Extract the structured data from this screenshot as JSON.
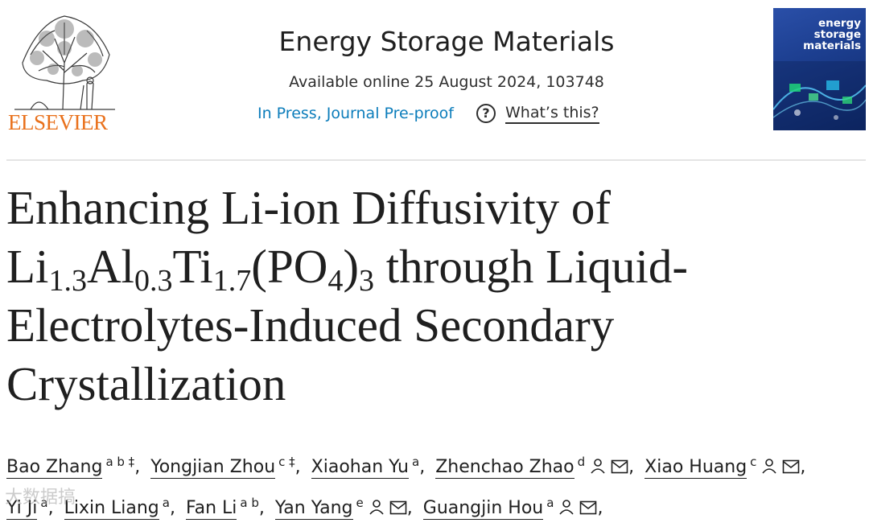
{
  "header": {
    "publisher_name": "ELSEVIER",
    "journal_title": "Energy Storage Materials",
    "available_online": "Available online 25 August 2024, 103748",
    "status_link": "In Press, Journal Pre-proof",
    "whats_this": "What’s this?",
    "cover_title_lines": [
      "energy",
      "storage",
      "materials"
    ]
  },
  "article": {
    "title_parts": {
      "line1": "Enhancing Li-ion Diffusivity of",
      "formula": [
        {
          "t": "Li",
          "sub": "1.3"
        },
        {
          "t": "Al",
          "sub": "0.3"
        },
        {
          "t": "Ti",
          "sub": "1.7"
        },
        {
          "t": "(PO",
          "sub": "4"
        },
        {
          "t": ")",
          "sub": "3"
        }
      ],
      "line2_rest": " through Liquid-",
      "line3": "Electrolytes-Induced Secondary",
      "line4": "Crystallization"
    }
  },
  "authors": [
    {
      "name": "Bao Zhang",
      "aff": "a b ‡",
      "person_icon": false,
      "mail_icon": false
    },
    {
      "name": "Yongjian Zhou",
      "aff": "c ‡",
      "person_icon": false,
      "mail_icon": false
    },
    {
      "name": "Xiaohan Yu",
      "aff": "a",
      "person_icon": false,
      "mail_icon": false
    },
    {
      "name": "Zhenchao Zhao",
      "aff": "d",
      "person_icon": true,
      "mail_icon": true
    },
    {
      "name": "Xiao Huang",
      "aff": "c",
      "person_icon": true,
      "mail_icon": true
    },
    {
      "name": "Yi Ji",
      "aff": "a",
      "person_icon": false,
      "mail_icon": false
    },
    {
      "name": "Lixin Liang",
      "aff": "a",
      "person_icon": false,
      "mail_icon": false
    },
    {
      "name": "Fan Li",
      "aff": "a b",
      "person_icon": false,
      "mail_icon": false
    },
    {
      "name": "Yan Yang",
      "aff": "e",
      "person_icon": true,
      "mail_icon": true
    },
    {
      "name": "Guangjin Hou",
      "aff": "a",
      "person_icon": true,
      "mail_icon": true
    }
  ],
  "author_separator": ",",
  "watermark": "大数据搞",
  "colors": {
    "publisher": "#e9711c",
    "link": "#0c7dbb",
    "text": "#1f1f1f"
  }
}
